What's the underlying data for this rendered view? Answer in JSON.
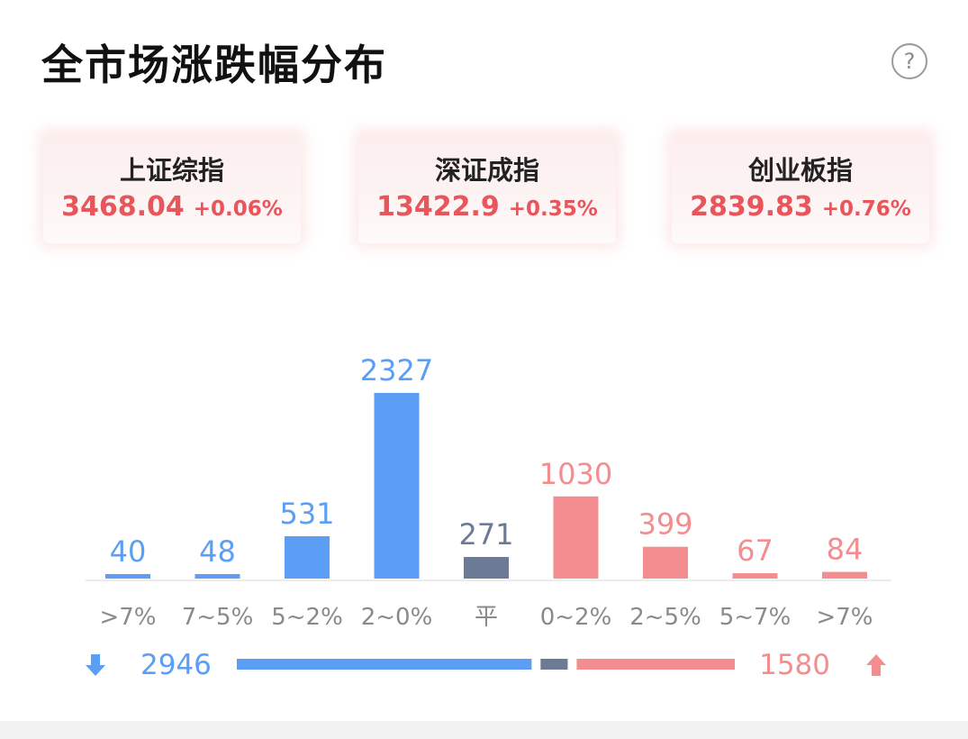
{
  "header": {
    "title": "全市场涨跌幅分布",
    "help_icon": "question-icon",
    "help_glyph": "?"
  },
  "index_cards": [
    {
      "name": "上证综指",
      "value": "3468.04",
      "change": "+0.06%"
    },
    {
      "name": "深证成指",
      "value": "13422.9",
      "change": "+0.35%"
    },
    {
      "name": "创业板指",
      "value": "2839.83",
      "change": "+0.76%"
    }
  ],
  "colors": {
    "down": "#5b9ef5",
    "flat": "#6c7a96",
    "up": "#f48d90",
    "index_text": "#e8555a",
    "axis_label": "#8a8a8a"
  },
  "chart_data": {
    "type": "bar",
    "title": "",
    "xlabel": "",
    "ylabel": "",
    "categories": [
      ">7%",
      "7~5%",
      "5~2%",
      "2~0%",
      "平",
      "0~2%",
      "2~5%",
      "5~7%",
      ">7%"
    ],
    "values": [
      40,
      48,
      531,
      2327,
      271,
      1030,
      399,
      67,
      84
    ],
    "groups": [
      "down",
      "down",
      "down",
      "down",
      "flat",
      "up",
      "up",
      "up",
      "up"
    ],
    "ylim": [
      0,
      2327
    ],
    "grid": false,
    "legend": "none"
  },
  "summary": {
    "down_icon": "arrow-down-icon",
    "down_count": "2946",
    "flat_count": 271,
    "up_count": "1580",
    "up_icon": "arrow-up-icon"
  }
}
